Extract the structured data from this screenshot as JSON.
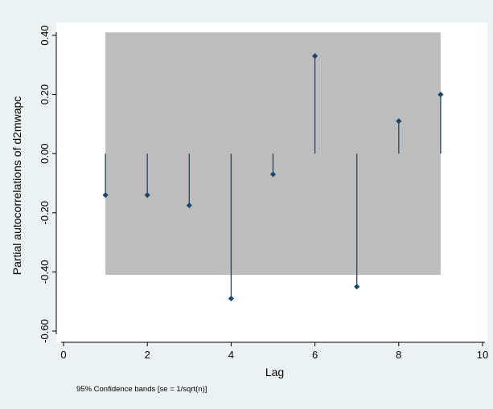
{
  "chart_data": {
    "type": "scatter",
    "subtype": "partial-autocorrelation-spikes",
    "title": "",
    "xlabel": "Lag",
    "ylabel": "Partial autocorrelations of d2mwapc",
    "note": "95% Confidence bands [se = 1/sqrt(n)]",
    "xlim": [
      0,
      10
    ],
    "ylim": [
      -0.6,
      0.4
    ],
    "x_ticks": [
      0,
      2,
      4,
      6,
      8,
      10
    ],
    "x_tick_labels": [
      "0",
      "2",
      "4",
      "6",
      "8",
      "10"
    ],
    "y_ticks": [
      -0.6,
      -0.4,
      -0.2,
      0.0,
      0.2,
      0.4
    ],
    "y_tick_labels": [
      "-0.60",
      "-0.40",
      "-0.20",
      "0.00",
      "0.20",
      "0.40"
    ],
    "grid": false,
    "legend": "none",
    "confidence_band": {
      "x_start": 1,
      "x_end": 9,
      "lower": -0.41,
      "upper": 0.41
    },
    "points": [
      {
        "x": 1,
        "y": -0.14
      },
      {
        "x": 2,
        "y": -0.14
      },
      {
        "x": 3,
        "y": -0.175
      },
      {
        "x": 4,
        "y": -0.49
      },
      {
        "x": 5,
        "y": -0.07
      },
      {
        "x": 6,
        "y": 0.33
      },
      {
        "x": 7,
        "y": -0.45
      },
      {
        "x": 8,
        "y": 0.11
      },
      {
        "x": 9,
        "y": 0.2
      }
    ],
    "colors": {
      "outer_background": "#eaf2f3",
      "plot_background": "#ffffff",
      "band": "#bdbdbd",
      "marker": "#1a476f",
      "axis": "#000000"
    }
  }
}
